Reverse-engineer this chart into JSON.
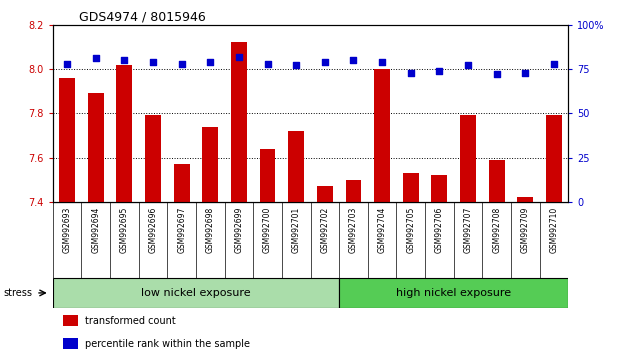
{
  "title": "GDS4974 / 8015946",
  "samples": [
    "GSM992693",
    "GSM992694",
    "GSM992695",
    "GSM992696",
    "GSM992697",
    "GSM992698",
    "GSM992699",
    "GSM992700",
    "GSM992701",
    "GSM992702",
    "GSM992703",
    "GSM992704",
    "GSM992705",
    "GSM992706",
    "GSM992707",
    "GSM992708",
    "GSM992709",
    "GSM992710"
  ],
  "bar_values": [
    7.96,
    7.89,
    8.02,
    7.79,
    7.57,
    7.74,
    8.12,
    7.64,
    7.72,
    7.47,
    7.5,
    8.0,
    7.53,
    7.52,
    7.79,
    7.59,
    7.42,
    7.79
  ],
  "percentile_values": [
    78,
    81,
    80,
    79,
    78,
    79,
    82,
    78,
    77,
    79,
    80,
    79,
    73,
    74,
    77,
    72,
    73,
    78
  ],
  "bar_color": "#cc0000",
  "dot_color": "#0000cc",
  "ylim_left": [
    7.4,
    8.2
  ],
  "ylim_right": [
    0,
    100
  ],
  "yticks_left": [
    7.4,
    7.6,
    7.8,
    8.0,
    8.2
  ],
  "yticks_right": [
    0,
    25,
    50,
    75,
    100
  ],
  "ytick_labels_right": [
    "0",
    "25",
    "50",
    "75",
    "100%"
  ],
  "group1_label": "low nickel exposure",
  "group2_label": "high nickel exposure",
  "group1_count": 10,
  "legend_bar_label": "transformed count",
  "legend_dot_label": "percentile rank within the sample",
  "stress_label": "stress",
  "bg_color": "#ffffff",
  "group_bg_low": "#aaddaa",
  "group_bg_high": "#55cc55",
  "tick_label_bg": "#cccccc",
  "gridline_color": "#000000"
}
